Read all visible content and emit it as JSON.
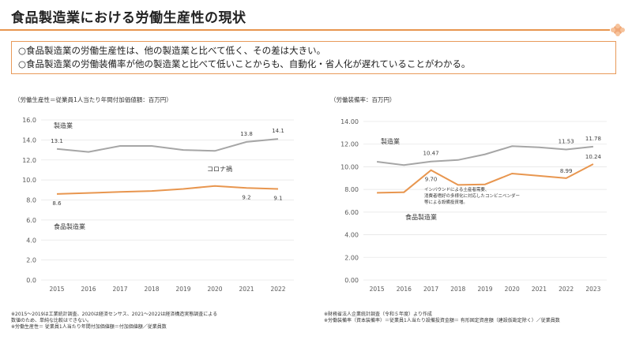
{
  "page": {
    "title": "食品製造業における労働生産性の現状",
    "summary": [
      "○食品製造業の労働生産性は、他の製造業と比べて低く、その差は大きい。",
      "○食品製造業の労働装備率が他の製造業と比べて低いことからも、自動化・省人化が遅れていることがわかる。"
    ]
  },
  "colors": {
    "accent": "#e8964f",
    "manufacturing": "#a6a6a6",
    "food": "#e8964f"
  },
  "chart_data": [
    {
      "type": "line",
      "title": "（労働生産性＝従業員1人当たり年間付加価値額：百万円）",
      "x": [
        "2015",
        "2016",
        "2017",
        "2018",
        "2019",
        "2020",
        "2021",
        "2022"
      ],
      "ylim": [
        0,
        16
      ],
      "yticks": [
        "0.0",
        "2.0",
        "4.0",
        "6.0",
        "8.0",
        "10.0",
        "12.0",
        "14.0",
        "16.0"
      ],
      "series": [
        {
          "name": "製造業",
          "values": [
            13.1,
            12.8,
            13.4,
            13.4,
            13.0,
            12.9,
            13.8,
            14.1
          ]
        },
        {
          "name": "食品製造業",
          "values": [
            8.6,
            8.7,
            8.8,
            8.9,
            9.1,
            9.4,
            9.2,
            9.1
          ]
        }
      ],
      "labels": [
        {
          "series": 0,
          "index": 0,
          "text": "13.1"
        },
        {
          "series": 0,
          "index": 6,
          "text": "13.8"
        },
        {
          "series": 0,
          "index": 7,
          "text": "14.1"
        },
        {
          "series": 1,
          "index": 0,
          "text": "8.6"
        },
        {
          "series": 1,
          "index": 6,
          "text": "9.2"
        },
        {
          "series": 1,
          "index": 7,
          "text": "9.1"
        }
      ],
      "annotation": "コロナ禍",
      "footnote": [
        "※2015～2019は工業統計調査、2020は経済センサス、2021～2022は経済構造実態調査による",
        "数値のため、単純な比較はできない。",
        "※労働生産性＝ 従業員1人当たり年間付加価値額＝付加価値額／従業員数"
      ]
    },
    {
      "type": "line",
      "title": "（労働装備率：百万円）",
      "x": [
        "2015",
        "2016",
        "2017",
        "2018",
        "2019",
        "2020",
        "2021",
        "2022",
        "2023"
      ],
      "ylim": [
        0,
        14
      ],
      "yticks": [
        "0.00",
        "2.00",
        "4.00",
        "6.00",
        "8.00",
        "10.00",
        "12.00",
        "14.00"
      ],
      "series": [
        {
          "name": "製造業",
          "values": [
            10.45,
            10.15,
            10.47,
            10.6,
            11.1,
            11.82,
            11.72,
            11.53,
            11.78
          ]
        },
        {
          "name": "食品製造業",
          "values": [
            7.7,
            7.75,
            9.7,
            8.4,
            8.45,
            9.4,
            9.2,
            8.99,
            10.24
          ]
        }
      ],
      "labels": [
        {
          "series": 0,
          "index": 2,
          "text": "10.47"
        },
        {
          "series": 0,
          "index": 7,
          "text": "11.53"
        },
        {
          "series": 0,
          "index": 8,
          "text": "11.78"
        },
        {
          "series": 1,
          "index": 2,
          "text": "9.70"
        },
        {
          "series": 1,
          "index": 7,
          "text": "8.99"
        },
        {
          "series": 1,
          "index": 8,
          "text": "10.24"
        }
      ],
      "annotation": [
        "インバウンドによる土産者需要、",
        "消費者嗜好の多様化に対応したコンビニベンダー",
        "等による設備投資増。"
      ],
      "footnote": [
        "※財務省法人企業統計調査（令和５年度）より作成",
        "※労働装備率（資本装備率）＝従業員1人当たり設備投資金額＝ 有形固定資産額（建設仮勘定除く）／従業員数"
      ]
    }
  ]
}
